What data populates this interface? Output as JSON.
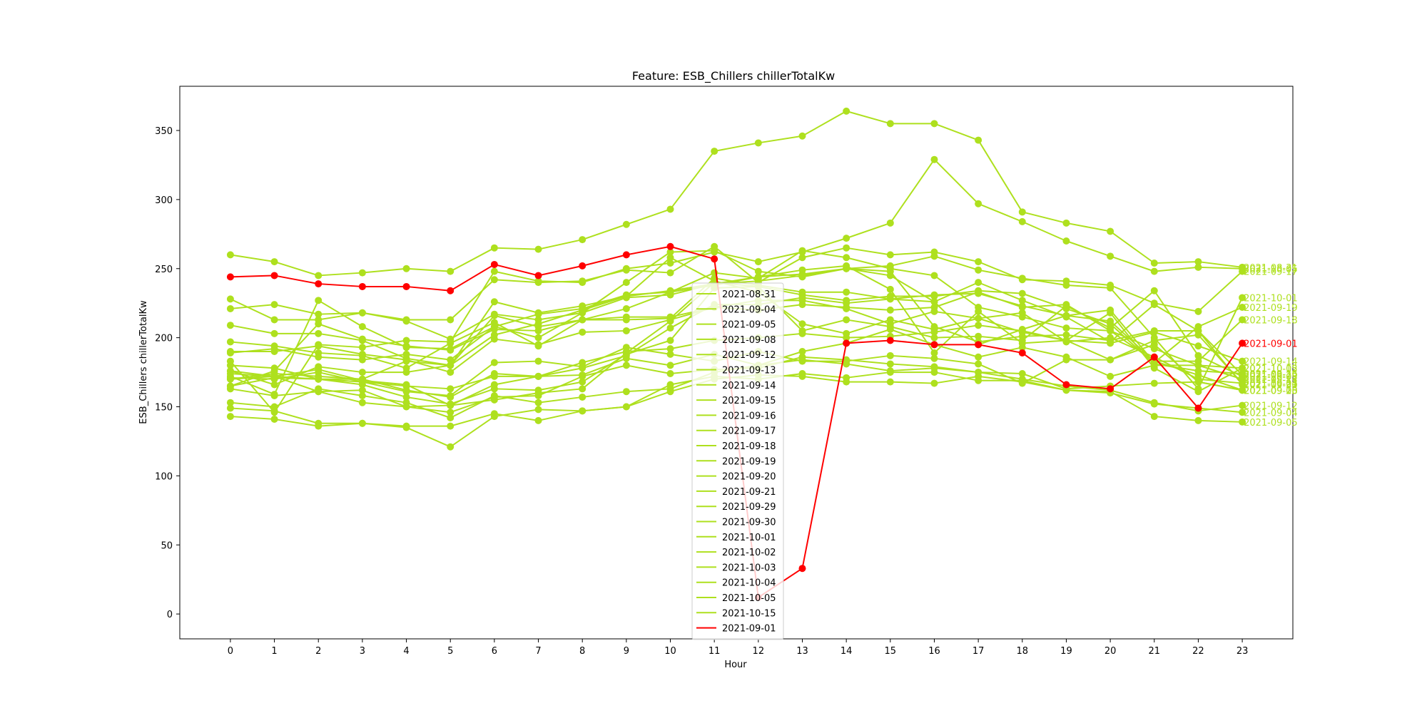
{
  "chart_data": {
    "type": "line",
    "title": "Feature: ESB_Chillers chillerTotalKw",
    "xlabel": "Hour",
    "ylabel": "ESB_Chillers chillerTotalKw",
    "x": [
      0,
      1,
      2,
      3,
      4,
      5,
      6,
      7,
      8,
      9,
      10,
      11,
      12,
      13,
      14,
      15,
      16,
      17,
      18,
      19,
      20,
      21,
      22,
      23
    ],
    "xlim": [
      -1.15,
      24.15
    ],
    "ylim": [
      -18,
      382
    ],
    "yticks": [
      0,
      50,
      100,
      150,
      200,
      250,
      300,
      350
    ],
    "grid": false,
    "legend_position": "center",
    "colors": {
      "normal": "#aee01e",
      "highlight": "#ff0000",
      "axis": "#000000",
      "background": "#ffffff"
    },
    "series": [
      {
        "name": "2021-08-31",
        "values": [
          260,
          255,
          245,
          247,
          250,
          248,
          265,
          264,
          271,
          282,
          293,
          335,
          341,
          346,
          364,
          355,
          355,
          343,
          291,
          283,
          277,
          254,
          255,
          251
        ]
      },
      {
        "name": "2021-09-04",
        "values": [
          143,
          141,
          136,
          138,
          136,
          136,
          145,
          140,
          147,
          150,
          161,
          170,
          173,
          172,
          168,
          168,
          167,
          172,
          168,
          162,
          160,
          152,
          149,
          146
        ]
      },
      {
        "name": "2021-09-05",
        "values": [
          149,
          147,
          138,
          138,
          135,
          121,
          143,
          148,
          147,
          150,
          166,
          172,
          170,
          174,
          171,
          175,
          175,
          169,
          169,
          162,
          161,
          143,
          140,
          139
        ]
      },
      {
        "name": "2021-09-08",
        "values": [
          174,
          172,
          161,
          153,
          150,
          146,
          157,
          158,
          172,
          180,
          174,
          177,
          178,
          186,
          184,
          181,
          179,
          175,
          174,
          163,
          165,
          167,
          168,
          162
        ]
      },
      {
        "name": "2021-09-12",
        "values": [
          153,
          150,
          163,
          158,
          153,
          142,
          158,
          153,
          157,
          161,
          163,
          175,
          180,
          184,
          181,
          176,
          178,
          175,
          170,
          165,
          162,
          153,
          147,
          151
        ]
      },
      {
        "name": "2021-09-13",
        "values": [
          180,
          178,
          170,
          168,
          165,
          163,
          172,
          172,
          173,
          185,
          180,
          188,
          180,
          190,
          196,
          206,
          195,
          186,
          193,
          186,
          172,
          180,
          180,
          170
        ]
      },
      {
        "name": "2021-09-14",
        "values": [
          170,
          174,
          172,
          170,
          162,
          157,
          174,
          172,
          182,
          190,
          192,
          198,
          200,
          203,
          200,
          201,
          204,
          209,
          205,
          198,
          196,
          204,
          194,
          183
        ]
      },
      {
        "name": "2021-09-15",
        "values": [
          176,
          172,
          177,
          169,
          166,
          151,
          166,
          172,
          178,
          187,
          207,
          224,
          224,
          229,
          225,
          228,
          231,
          232,
          223,
          216,
          212,
          183,
          173,
          162
        ]
      },
      {
        "name": "2021-09-16",
        "values": [
          165,
          171,
          170,
          166,
          157,
          152,
          163,
          162,
          168,
          188,
          198,
          236,
          237,
          231,
          227,
          230,
          230,
          234,
          232,
          221,
          210,
          181,
          176,
          174
        ]
      },
      {
        "name": "2021-09-17",
        "values": [
          221,
          224,
          217,
          218,
          213,
          213,
          242,
          240,
          241,
          249,
          247,
          266,
          240,
          258,
          265,
          260,
          262,
          255,
          242,
          241,
          238,
          225,
          219,
          248
        ]
      },
      {
        "name": "2021-09-18",
        "values": [
          190,
          190,
          194,
          188,
          184,
          175,
          199,
          195,
          204,
          205,
          213,
          222,
          220,
          224,
          222,
          220,
          222,
          233,
          222,
          224,
          205,
          183,
          183,
          213
        ]
      },
      {
        "name": "2021-09-19",
        "values": [
          228,
          213,
          213,
          218,
          212,
          199,
          217,
          213,
          218,
          229,
          231,
          239,
          241,
          245,
          250,
          245,
          226,
          195,
          206,
          216,
          220,
          182,
          208,
          222
        ]
      },
      {
        "name": "2021-09-20",
        "values": [
          165,
          176,
          210,
          199,
          194,
          191,
          206,
          205,
          213,
          215,
          215,
          222,
          227,
          227,
          221,
          210,
          219,
          214,
          204,
          198,
          184,
          195,
          168,
          162
        ]
      },
      {
        "name": "2021-09-21",
        "values": [
          176,
          166,
          179,
          175,
          175,
          180,
          202,
          210,
          220,
          230,
          258,
          241,
          233,
          210,
          203,
          213,
          206,
          214,
          218,
          197,
          200,
          186,
          170,
          167
        ]
      },
      {
        "name": "2021-09-29",
        "values": [
          189,
          192,
          186,
          184,
          188,
          184,
          208,
          200,
          218,
          240,
          262,
          263,
          248,
          244,
          250,
          248,
          208,
          197,
          201,
          202,
          198,
          205,
          205,
          173
        ]
      },
      {
        "name": "2021-09-30",
        "values": [
          197,
          194,
          189,
          187,
          178,
          196,
          211,
          194,
          213,
          213,
          214,
          243,
          238,
          233,
          233,
          228,
          226,
          240,
          227,
          215,
          197,
          224,
          205,
          166
        ]
      },
      {
        "name": "2021-10-01",
        "values": [
          209,
          203,
          203,
          198,
          185,
          180,
          226,
          218,
          223,
          230,
          234,
          239,
          244,
          246,
          250,
          252,
          259,
          249,
          243,
          238,
          236,
          200,
          163,
          229
        ]
      },
      {
        "name": "2021-10-02",
        "values": [
          172,
          159,
          227,
          208,
          193,
          192,
          208,
          217,
          221,
          231,
          233,
          238,
          244,
          249,
          252,
          235,
          189,
          219,
          196,
          198,
          218,
          178,
          161,
          178
        ]
      },
      {
        "name": "2021-10-03",
        "values": [
          163,
          158,
          161,
          162,
          150,
          151,
          155,
          160,
          163,
          189,
          212,
          240,
          237,
          205,
          213,
          208,
          200,
          201,
          198,
          223,
          207,
          234,
          187,
          172
        ]
      },
      {
        "name": "2021-10-04",
        "values": [
          171,
          170,
          175,
          168,
          161,
          158,
          182,
          183,
          179,
          193,
          188,
          183,
          190,
          183,
          183,
          187,
          185,
          181,
          167,
          184,
          184,
          198,
          202,
          167
        ]
      },
      {
        "name": "2021-10-05",
        "values": [
          183,
          146,
          195,
          193,
          198,
          197,
          248,
          241,
          240,
          250,
          254,
          262,
          255,
          262,
          272,
          283,
          329,
          297,
          284,
          270,
          259,
          248,
          251,
          250
        ]
      },
      {
        "name": "2021-10-15",
        "values": [
          170,
          172,
          170,
          170,
          183,
          180,
          216,
          208,
          213,
          221,
          233,
          247,
          243,
          263,
          258,
          250,
          245,
          222,
          215,
          207,
          205,
          192,
          180,
          178
        ]
      },
      {
        "name": "2021-09-01",
        "highlight": true,
        "values": [
          244,
          245,
          239,
          237,
          237,
          234,
          253,
          245,
          252,
          260,
          266,
          257,
          12,
          33,
          196,
          198,
          195,
          195,
          189,
          166,
          163,
          186,
          149,
          196
        ]
      }
    ]
  }
}
